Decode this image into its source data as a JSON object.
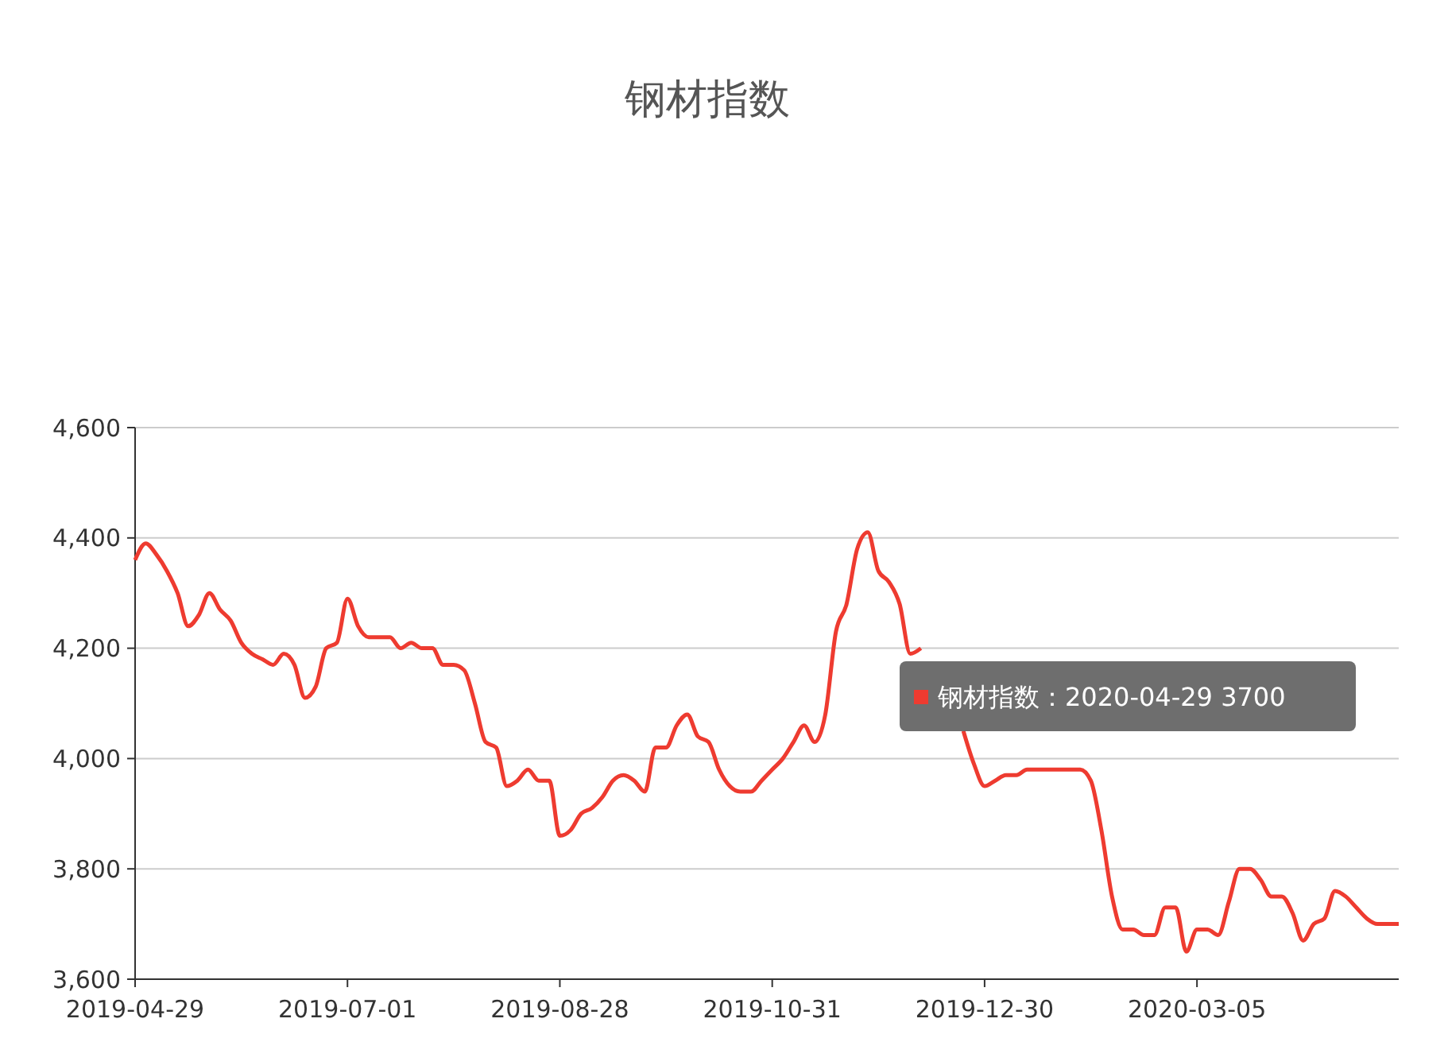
{
  "chart_data": {
    "type": "line",
    "title": "钢材指数",
    "categories": [
      "2019-04-29",
      null,
      null,
      null,
      null,
      null,
      null,
      null,
      null,
      null,
      null,
      null,
      null,
      null,
      null,
      null,
      null,
      null,
      null,
      null,
      "2019-07-01",
      null,
      null,
      null,
      null,
      null,
      null,
      null,
      null,
      null,
      null,
      null,
      null,
      null,
      null,
      null,
      null,
      null,
      null,
      null,
      "2019-08-28",
      null,
      null,
      null,
      null,
      null,
      null,
      null,
      null,
      null,
      null,
      null,
      null,
      null,
      null,
      null,
      null,
      null,
      null,
      null,
      "2019-10-31",
      null,
      null,
      null,
      null,
      null,
      null,
      null,
      null,
      null,
      null,
      null,
      null,
      null,
      null,
      null,
      null,
      null,
      null,
      null,
      "2019-12-30",
      null,
      null,
      null,
      null,
      null,
      null,
      null,
      null,
      null,
      null,
      null,
      null,
      null,
      null,
      null,
      null,
      null,
      null,
      null,
      "2020-03-05",
      null,
      null,
      null,
      null,
      null,
      null,
      null,
      null,
      null,
      null,
      null,
      null,
      null,
      null,
      null,
      null,
      null,
      null,
      null
    ],
    "series": [
      {
        "color": "#ee3b30",
        "values": [
          4360,
          4390,
          4370,
          4340,
          4300,
          4240,
          4260,
          4300,
          4270,
          4250,
          4210,
          4190,
          4180,
          4170,
          4190,
          4170,
          4110,
          4130,
          4200,
          4210,
          4290,
          4240,
          4220,
          4220,
          4220,
          4200,
          4210,
          4200,
          4200,
          4170,
          4170,
          4160,
          4100,
          4030,
          4020,
          3950,
          3960,
          3980,
          3960,
          3960,
          3860,
          3870,
          3900,
          3910,
          3930,
          3960,
          3970,
          3960,
          3940,
          4020,
          4020,
          4060,
          4080,
          4040,
          4030,
          3980,
          3950,
          3940,
          3940,
          3960,
          3980,
          4000,
          4030,
          4060,
          4030,
          4080,
          4230,
          4280,
          4380,
          4410,
          4340,
          4320,
          4280,
          4190,
          4200,
          null,
          null,
          null,
          4050,
          3990,
          3950,
          3960,
          3970,
          3970,
          3980,
          3980,
          3980,
          3980,
          3980,
          3980,
          3960,
          3870,
          3750,
          3690,
          3690,
          3680,
          3680,
          3730,
          3730,
          3650,
          3690,
          3690,
          3680,
          3740,
          3800,
          3800,
          3780,
          3750,
          3750,
          3720,
          3670,
          3700,
          3710,
          3760,
          3750,
          3730,
          3710,
          3700,
          3700,
          3700
        ]
      }
    ],
    "ylim": [
      3600,
      4600
    ],
    "yticks": [
      {
        "value": 3600,
        "label": "3,600"
      },
      {
        "value": 3800,
        "label": "3,800"
      },
      {
        "value": 4000,
        "label": "4,000"
      },
      {
        "value": 4200,
        "label": "4,200"
      },
      {
        "value": 4400,
        "label": "4,400"
      },
      {
        "value": 4600,
        "label": "4,600"
      }
    ],
    "grid": "y",
    "line_style": "solid",
    "annotations": [
      "钢材指数：2020-04-29 3700"
    ]
  }
}
